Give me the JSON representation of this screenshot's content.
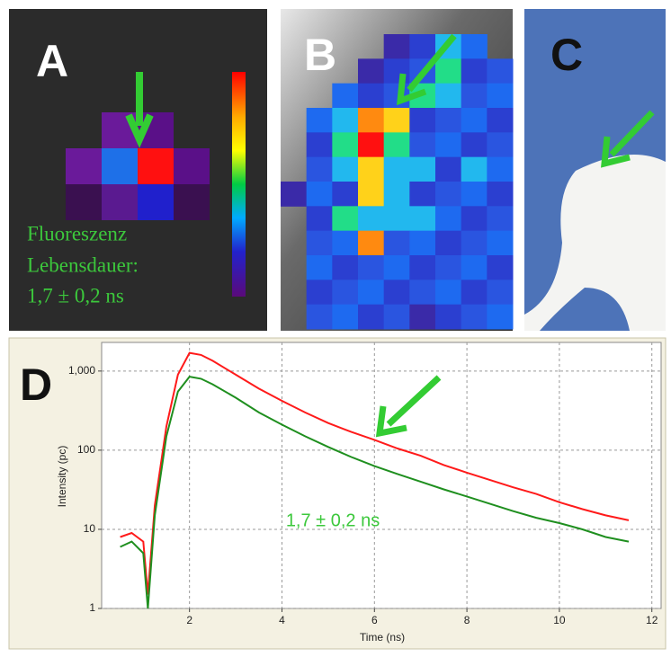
{
  "panels": {
    "a": {
      "label": "A",
      "text": [
        "Fluoreszenz",
        "Lebensdauer:",
        "1,7 ± 0,2 ns"
      ]
    },
    "b": {
      "label": "B"
    },
    "c": {
      "label": "C"
    },
    "d": {
      "label": "D"
    }
  },
  "chart_data": {
    "type": "line",
    "xlabel": "Time (ns)",
    "ylabel": "Intensity (pc)",
    "annotation": "1,7 ± 0,2 ns",
    "x": [
      0.5,
      0.75,
      1,
      1.1,
      1.25,
      1.5,
      1.75,
      2,
      2.25,
      2.5,
      3,
      3.5,
      4,
      4.5,
      5,
      5.5,
      6,
      6.5,
      7,
      7.5,
      8,
      8.5,
      9,
      9.5,
      10,
      10.5,
      11,
      11.5
    ],
    "series": [
      {
        "color": "#ff1a1a",
        "values": [
          8,
          9,
          7,
          1.5,
          20,
          200,
          900,
          1700,
          1600,
          1350,
          900,
          600,
          420,
          300,
          220,
          170,
          135,
          105,
          85,
          65,
          52,
          42,
          34,
          28,
          22,
          18,
          15,
          13
        ]
      },
      {
        "color": "#1f8f1f",
        "values": [
          6,
          7,
          5,
          1,
          15,
          150,
          550,
          850,
          800,
          680,
          460,
          300,
          210,
          150,
          110,
          82,
          63,
          50,
          40,
          32,
          26,
          21,
          17,
          14,
          12,
          10,
          8,
          7
        ]
      }
    ],
    "xlim": [
      0.1,
      12.2
    ],
    "ylim": [
      1,
      2300
    ],
    "xticks": [
      2,
      4,
      6,
      8,
      10,
      12
    ],
    "yticks": [
      {
        "value": 1000,
        "label": "1,000"
      },
      100,
      10,
      1
    ],
    "log_y": true,
    "grid": true
  }
}
